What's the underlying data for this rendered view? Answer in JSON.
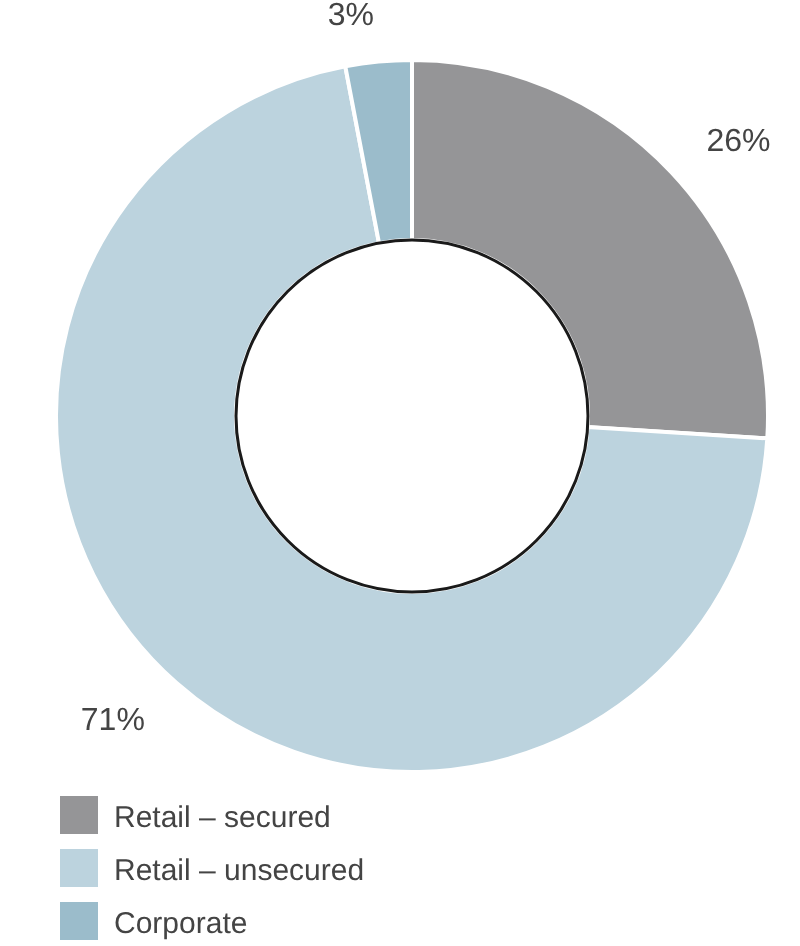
{
  "chart_data": {
    "type": "donut",
    "categories": [
      "Retail – secured",
      "Retail – unsecured",
      "Corporate"
    ],
    "values": [
      26,
      71,
      3
    ],
    "colors": [
      "#959597",
      "#bcd3de",
      "#9bbccb"
    ],
    "value_labels": [
      "26%",
      "71%",
      "3%"
    ],
    "legend": "bottom left"
  }
}
